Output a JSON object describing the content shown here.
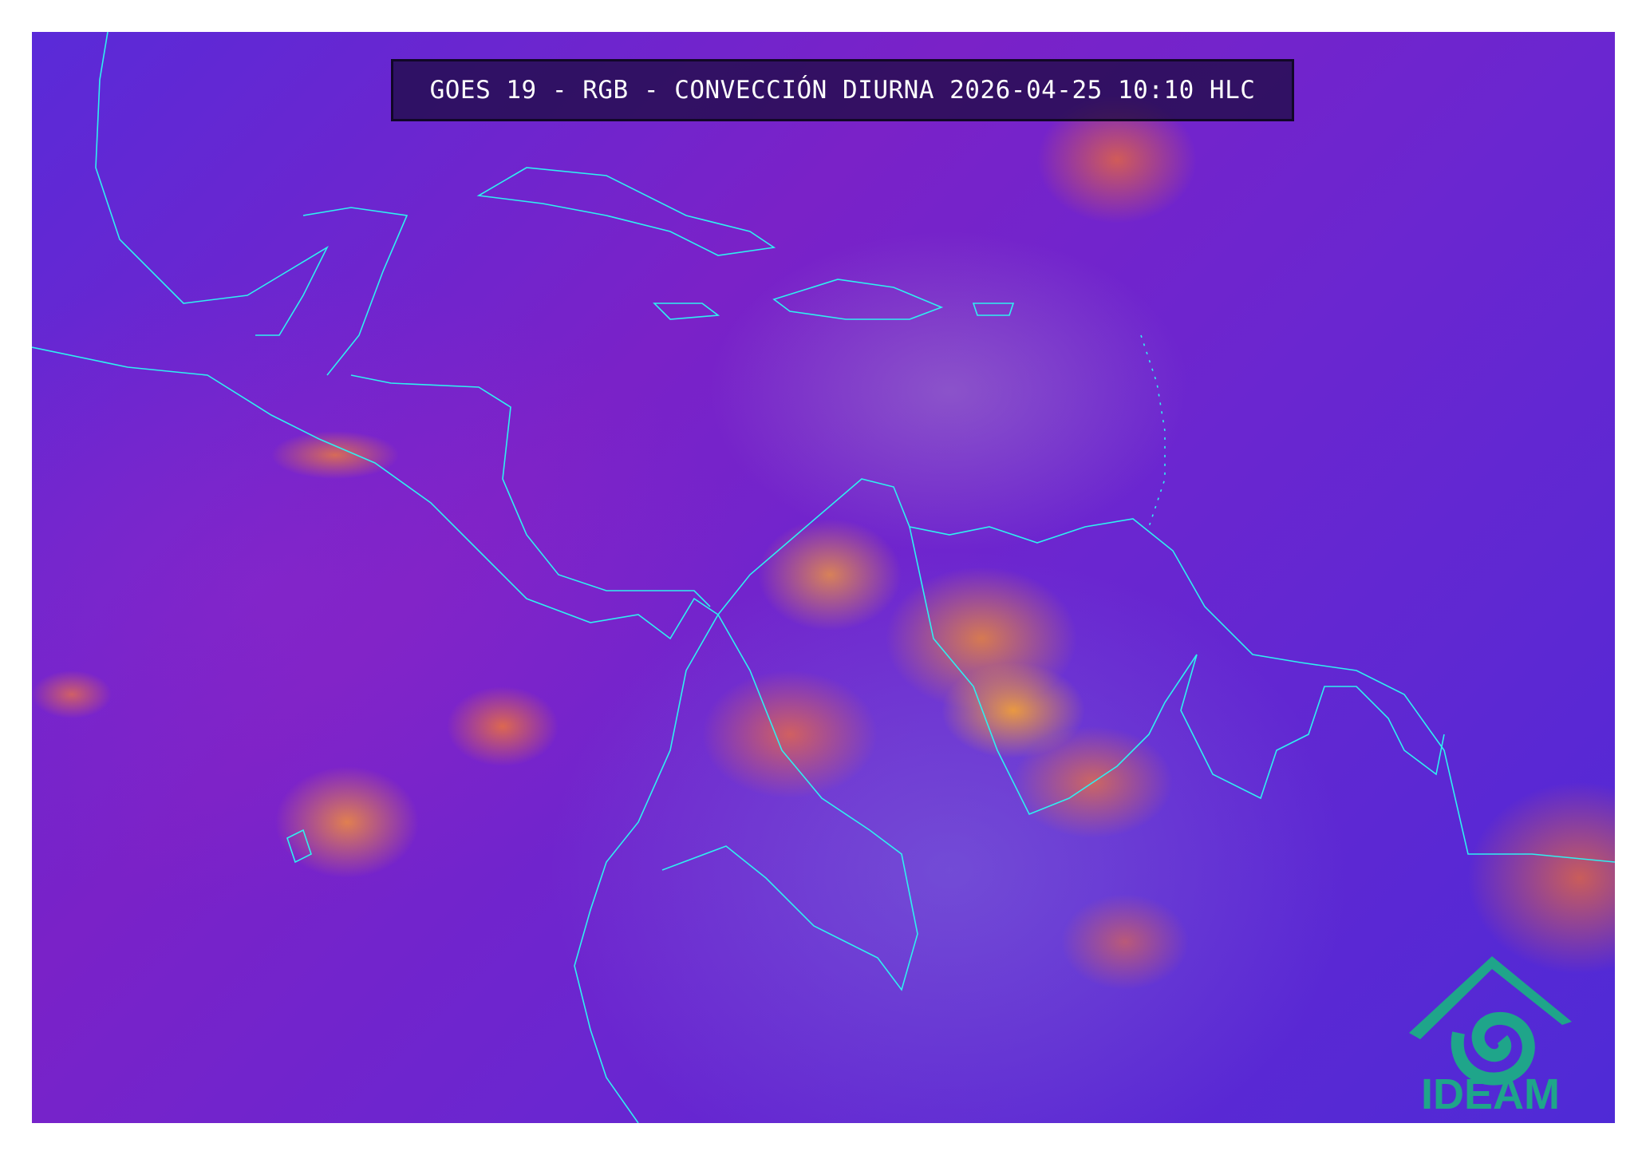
{
  "title": "GOES 19 - RGB - CONVECCIÓN DIURNA 2026-04-25 10:10 HLC",
  "logo": {
    "text": "IDEAM",
    "color": "#1fa58a"
  },
  "colors": {
    "background": "#6a26d0",
    "coastline": "#2ff0f0",
    "convection": "#f59a30"
  }
}
